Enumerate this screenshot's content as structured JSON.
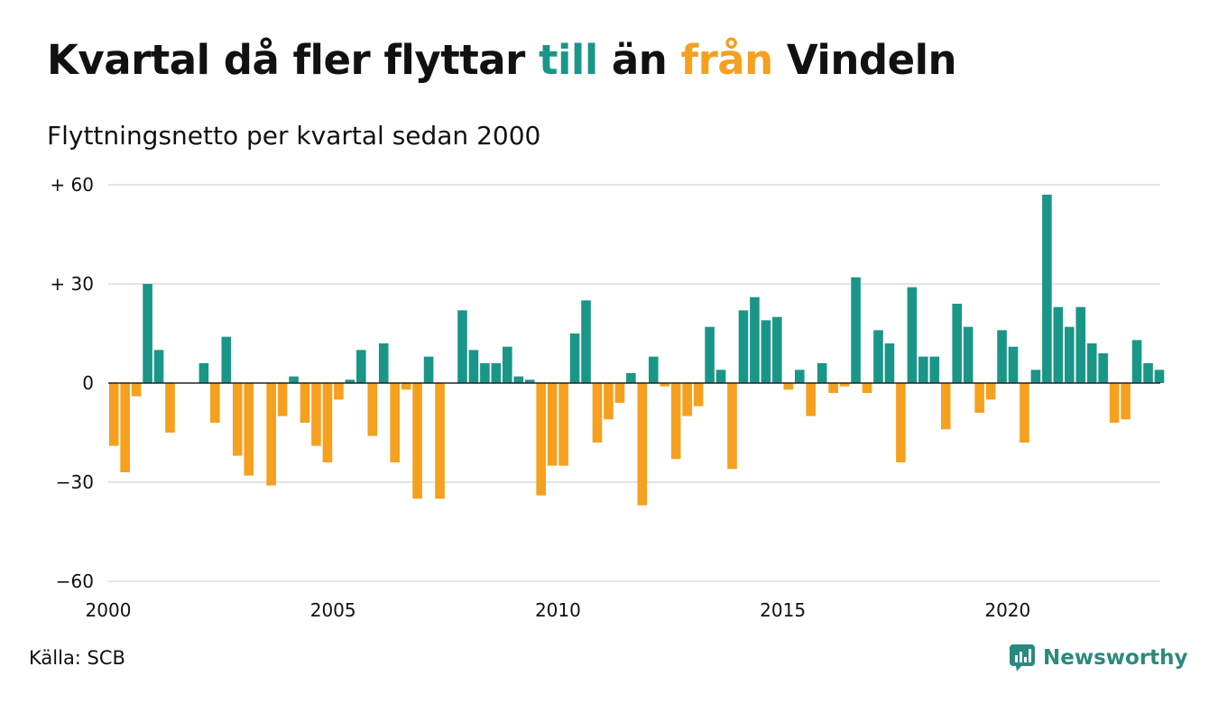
{
  "title": {
    "part1": "Kvartal då fler flyttar ",
    "part2": "till",
    "part3": " än ",
    "part4": "från",
    "part5": " Vindeln"
  },
  "subtitle": "Flyttningsnetto per kvartal sedan 2000",
  "source": "Källa: SCB",
  "brand": "Newsworthy",
  "colors": {
    "positive": "#1a9688",
    "negative": "#f5a01e",
    "grid": "#e3e3e3"
  },
  "chart_data": {
    "type": "bar",
    "ylim": [
      -60,
      60
    ],
    "grid": true,
    "y_ticks": [
      {
        "value": 60,
        "label": "+ 60"
      },
      {
        "value": 30,
        "label": "+ 30"
      },
      {
        "value": 0,
        "label": "0"
      },
      {
        "value": -30,
        "label": "−30"
      },
      {
        "value": -60,
        "label": "−60"
      }
    ],
    "x_ticks": [
      {
        "index": 0,
        "label": "2000"
      },
      {
        "index": 20,
        "label": "2005"
      },
      {
        "index": 40,
        "label": "2010"
      },
      {
        "index": 60,
        "label": "2015"
      },
      {
        "index": 80,
        "label": "2020"
      }
    ],
    "start_label": "2000 Q1",
    "values": [
      -19,
      -27,
      -4,
      30,
      10,
      -15,
      0,
      0,
      6,
      -12,
      14,
      -22,
      -28,
      0,
      -31,
      -10,
      2,
      -12,
      -19,
      -24,
      -5,
      1,
      10,
      -16,
      12,
      -24,
      -2,
      -35,
      8,
      -35,
      0,
      22,
      10,
      6,
      6,
      11,
      2,
      1,
      -34,
      -25,
      -25,
      15,
      25,
      -18,
      -11,
      -6,
      3,
      -37,
      8,
      -1,
      -23,
      -10,
      -7,
      17,
      4,
      -26,
      22,
      26,
      19,
      20,
      -2,
      4,
      -10,
      6,
      -3,
      -1,
      32,
      -3,
      16,
      12,
      -24,
      29,
      8,
      8,
      -14,
      24,
      17,
      -9,
      -5,
      16,
      11,
      -18,
      4,
      57,
      23,
      17,
      23,
      12,
      9,
      -12,
      -11,
      13,
      6,
      4
    ]
  }
}
